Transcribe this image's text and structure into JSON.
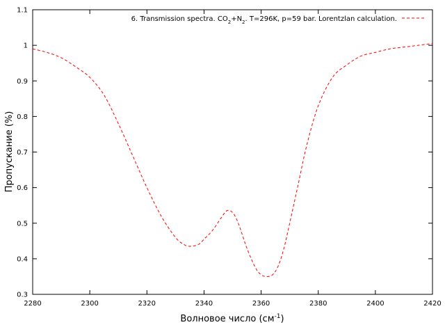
{
  "chart_data": {
    "type": "line",
    "xlabel_main": "Волновое число (см",
    "xlabel_sup": "-1",
    "xlabel_end": ")",
    "ylabel": "Пропускание (%)",
    "xlim": [
      2280,
      2420
    ],
    "ylim": [
      0.3,
      1.1
    ],
    "xticks": [
      2280,
      2300,
      2320,
      2340,
      2360,
      2380,
      2400,
      2420
    ],
    "yticks": [
      0.3,
      0.4,
      0.5,
      0.6,
      0.7,
      0.8,
      0.9,
      1,
      1.1
    ],
    "grid": false,
    "legend_position": "top-right",
    "series": [
      {
        "legend": {
          "p1": "6. Transmission spectra. CO",
          "s1": "2",
          "p2": "+N",
          "s2": "2",
          "p3": ". T=296K, p=59 bar. Lorentzlan calculation."
        },
        "color": "#ff0000",
        "style": "dashed",
        "x": [
          2280,
          2285,
          2290,
          2295,
          2300,
          2305,
          2310,
          2315,
          2320,
          2325,
          2330,
          2333,
          2335,
          2338,
          2340,
          2343,
          2346,
          2348,
          2350,
          2352,
          2355,
          2358,
          2360,
          2362,
          2364,
          2366,
          2368,
          2370,
          2373,
          2376,
          2380,
          2385,
          2390,
          2395,
          2400,
          2405,
          2410,
          2415,
          2420
        ],
        "y": [
          0.99,
          0.98,
          0.965,
          0.94,
          0.91,
          0.86,
          0.78,
          0.69,
          0.6,
          0.52,
          0.46,
          0.44,
          0.435,
          0.44,
          0.455,
          0.48,
          0.515,
          0.535,
          0.53,
          0.5,
          0.43,
          0.375,
          0.355,
          0.35,
          0.355,
          0.38,
          0.43,
          0.5,
          0.61,
          0.72,
          0.83,
          0.91,
          0.945,
          0.97,
          0.98,
          0.99,
          0.995,
          1.0,
          1.005
        ]
      }
    ]
  }
}
